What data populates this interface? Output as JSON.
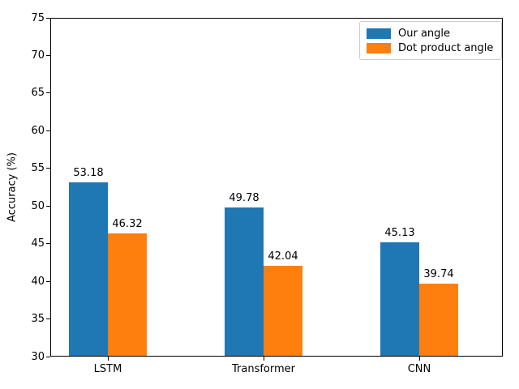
{
  "chart_data": {
    "type": "bar",
    "title": "",
    "xlabel": "",
    "ylabel": "Accuracy (%)",
    "categories": [
      "LSTM",
      "Transformer",
      "CNN"
    ],
    "series": [
      {
        "name": "Our angle",
        "color": "#1f77b4",
        "values": [
          53.18,
          49.78,
          45.13
        ]
      },
      {
        "name": "Dot product angle",
        "color": "#ff7f0e",
        "values": [
          46.32,
          42.04,
          39.74
        ]
      }
    ],
    "bar_value_labels": [
      "53.18",
      "46.32",
      "49.78",
      "42.04",
      "45.13",
      "39.74"
    ],
    "ylim": [
      30,
      75
    ],
    "yticks": [
      30,
      35,
      40,
      45,
      50,
      55,
      60,
      65,
      70,
      75
    ],
    "grid": false,
    "legend_position": "upper right",
    "frame": "full-box",
    "colors": {
      "axis": "#000000",
      "text": "#000000",
      "background": "#ffffff",
      "legend_border": "#cccccc"
    }
  }
}
